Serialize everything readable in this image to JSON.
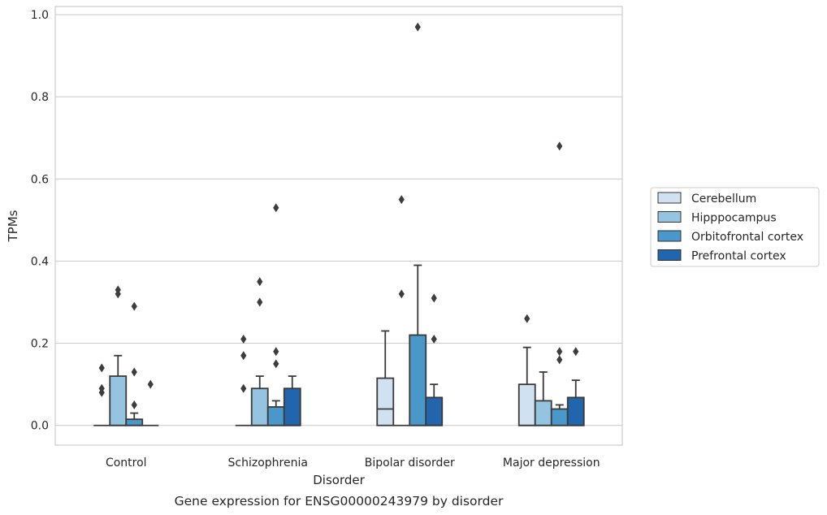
{
  "chart_data": {
    "type": "box",
    "caption": "Gene expression for ENSG00000243979 by disorder",
    "xlabel": "Disorder",
    "ylabel": "TPMs",
    "ylim": [
      -0.048,
      1.02
    ],
    "yticks": [
      0.0,
      0.2,
      0.4,
      0.6,
      0.8,
      1.0
    ],
    "ytick_labels": [
      "0.0",
      "0.2",
      "0.4",
      "0.6",
      "0.8",
      "1.0"
    ],
    "grid": "horizontal",
    "legend_position": "right",
    "categories": [
      "Control",
      "Schizophrenia",
      "Bipolar disorder",
      "Major depression"
    ],
    "series": [
      {
        "name": "Cerebellum",
        "color": "#d0e1f2",
        "boxes": [
          {
            "q1": 0.0,
            "median": 0.0,
            "q3": 0.0,
            "whisker_low": 0.0,
            "whisker_high": 0.0,
            "outliers": [
              0.08,
              0.09,
              0.14
            ]
          },
          {
            "q1": 0.0,
            "median": 0.0,
            "q3": 0.0,
            "whisker_low": 0.0,
            "whisker_high": 0.0,
            "outliers": [
              0.09,
              0.17,
              0.21
            ]
          },
          {
            "q1": 0.0,
            "median": 0.04,
            "q3": 0.115,
            "whisker_low": 0.0,
            "whisker_high": 0.23,
            "outliers": []
          },
          {
            "q1": 0.0,
            "median": 0.0,
            "q3": 0.1,
            "whisker_low": 0.0,
            "whisker_high": 0.19,
            "outliers": [
              0.26
            ]
          }
        ]
      },
      {
        "name": "Hipppocampus",
        "color": "#94c4df",
        "boxes": [
          {
            "q1": 0.0,
            "median": 0.0,
            "q3": 0.12,
            "whisker_low": 0.0,
            "whisker_high": 0.17,
            "outliers": [
              0.32,
              0.33
            ]
          },
          {
            "q1": 0.0,
            "median": 0.0,
            "q3": 0.09,
            "whisker_low": 0.0,
            "whisker_high": 0.12,
            "outliers": [
              0.3,
              0.35
            ]
          },
          {
            "q1": 0.0,
            "median": 0.0,
            "q3": 0.0,
            "whisker_low": 0.0,
            "whisker_high": 0.0,
            "outliers": [
              0.32,
              0.55
            ]
          },
          {
            "q1": 0.0,
            "median": 0.0,
            "q3": 0.06,
            "whisker_low": 0.0,
            "whisker_high": 0.13,
            "outliers": []
          }
        ]
      },
      {
        "name": "Orbitofrontal cortex",
        "color": "#4a98c9",
        "boxes": [
          {
            "q1": 0.0,
            "median": 0.0,
            "q3": 0.015,
            "whisker_low": 0.0,
            "whisker_high": 0.03,
            "outliers": [
              0.05,
              0.13,
              0.29
            ]
          },
          {
            "q1": 0.0,
            "median": 0.0,
            "q3": 0.045,
            "whisker_low": 0.0,
            "whisker_high": 0.06,
            "outliers": [
              0.15,
              0.18,
              0.53
            ]
          },
          {
            "q1": 0.0,
            "median": 0.0,
            "q3": 0.22,
            "whisker_low": 0.0,
            "whisker_high": 0.39,
            "outliers": [
              0.97
            ]
          },
          {
            "q1": 0.0,
            "median": 0.0,
            "q3": 0.04,
            "whisker_low": 0.0,
            "whisker_high": 0.05,
            "outliers": [
              0.16,
              0.18,
              0.68
            ]
          }
        ]
      },
      {
        "name": "Prefrontal cortex",
        "color": "#2166ac",
        "boxes": [
          {
            "q1": 0.0,
            "median": 0.0,
            "q3": 0.0,
            "whisker_low": 0.0,
            "whisker_high": 0.0,
            "outliers": [
              0.1
            ]
          },
          {
            "q1": 0.0,
            "median": 0.0,
            "q3": 0.09,
            "whisker_low": 0.0,
            "whisker_high": 0.12,
            "outliers": []
          },
          {
            "q1": 0.0,
            "median": 0.0,
            "q3": 0.068,
            "whisker_low": 0.0,
            "whisker_high": 0.1,
            "outliers": [
              0.21,
              0.31
            ]
          },
          {
            "q1": 0.0,
            "median": 0.0,
            "q3": 0.068,
            "whisker_low": 0.0,
            "whisker_high": 0.11,
            "outliers": [
              0.18
            ]
          }
        ]
      }
    ],
    "colors": {
      "box_edge": "#3a3a3a",
      "grid": "#cfcfcf",
      "axes_frame": "#cccccc",
      "legend_frame": "#cccccc"
    }
  }
}
